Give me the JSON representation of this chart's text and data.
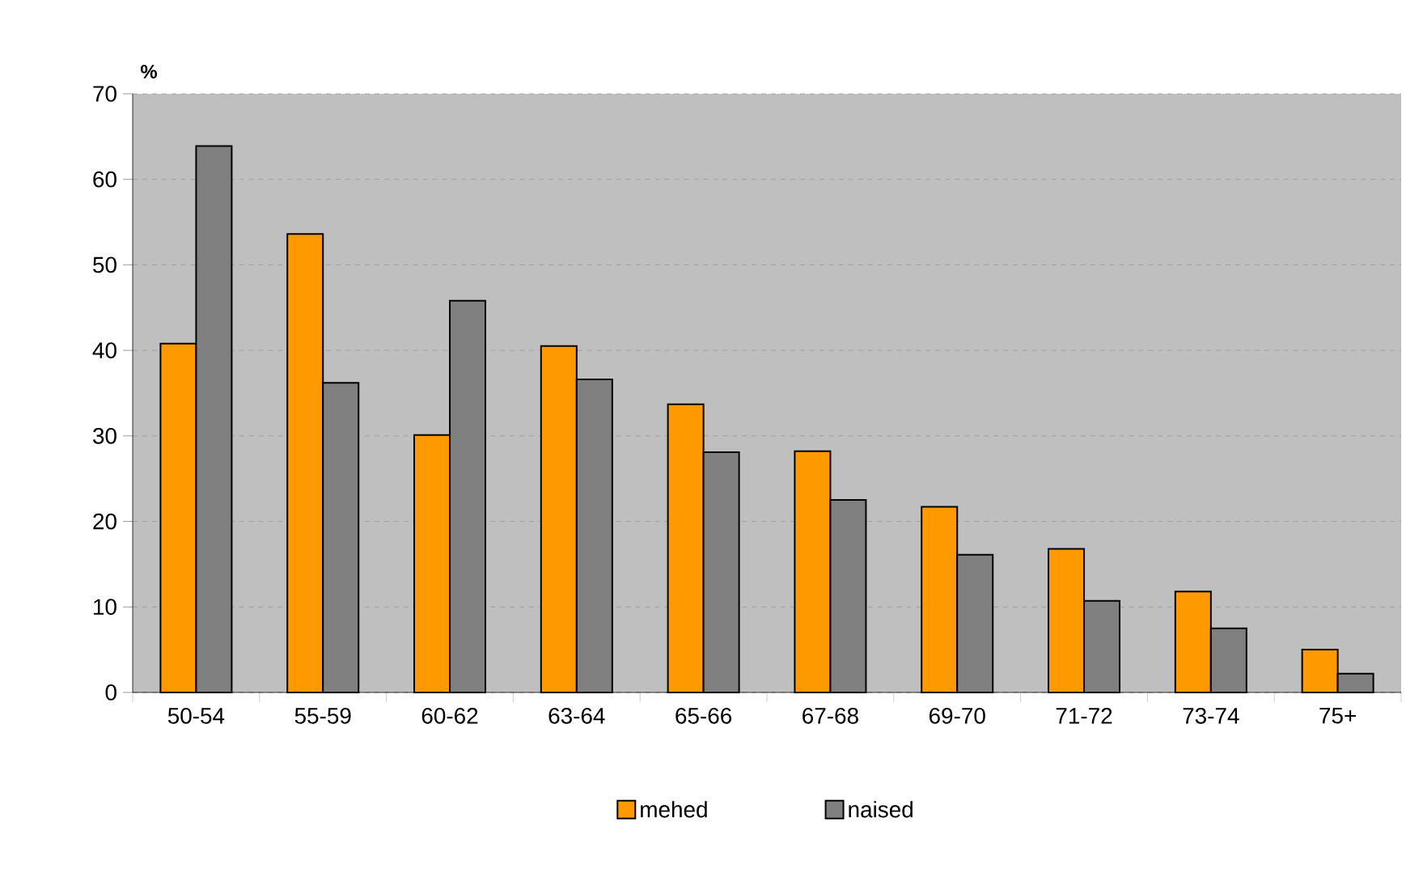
{
  "chart_data": {
    "type": "bar",
    "ylabel": "%",
    "categories": [
      "50-54",
      "55-59",
      "60-62",
      "63-64",
      "65-66",
      "67-68",
      "69-70",
      "71-72",
      "73-74",
      "75+"
    ],
    "series": [
      {
        "name": "mehed",
        "color": "#ff9900",
        "values": [
          40.8,
          53.6,
          30.1,
          40.5,
          33.7,
          28.2,
          21.7,
          16.8,
          11.8,
          5.0
        ]
      },
      {
        "name": "naised",
        "color": "#808080",
        "values": [
          63.9,
          36.2,
          45.8,
          36.6,
          28.1,
          22.5,
          16.1,
          10.7,
          7.5,
          2.2
        ]
      }
    ],
    "ylim": [
      0,
      70
    ],
    "yticks": [
      0,
      10,
      20,
      30,
      40,
      50,
      60,
      70
    ],
    "grid": "y",
    "legend": "bottom"
  }
}
